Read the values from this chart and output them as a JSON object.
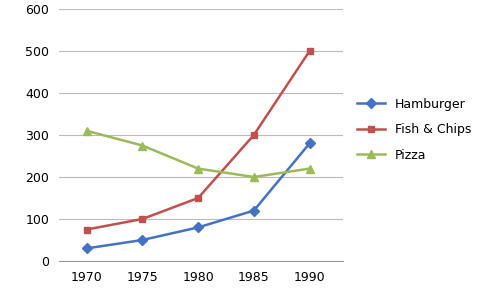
{
  "years": [
    1970,
    1975,
    1980,
    1985,
    1990
  ],
  "hamburger": [
    30,
    50,
    80,
    120,
    280
  ],
  "fish_chips": [
    75,
    100,
    150,
    300,
    500
  ],
  "pizza": [
    310,
    275,
    220,
    200,
    220
  ],
  "hamburger_color": "#4472C4",
  "fish_chips_color": "#C0504D",
  "pizza_color": "#9BBB59",
  "hamburger_label": "Hamburger",
  "fish_chips_label": "Fish & Chips",
  "pizza_label": "Pizza",
  "ylim": [
    0,
    600
  ],
  "yticks": [
    0,
    100,
    200,
    300,
    400,
    500,
    600
  ],
  "background_color": "#FFFFFF",
  "grid_color": "#BBBBBB"
}
